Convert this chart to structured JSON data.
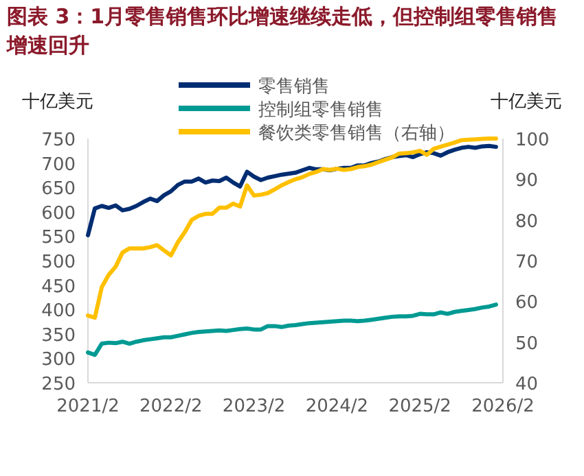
{
  "chart_data": {
    "type": "line",
    "title": "图表 3：1月零售销售环比增速继续走低，但控制组零售销售增速回升",
    "ylabel": "十亿美元",
    "y2label": "十亿美元",
    "x": [
      "2021-02",
      "2021-03",
      "2021-04",
      "2021-05",
      "2021-06",
      "2021-07",
      "2021-08",
      "2021-09",
      "2021-10",
      "2021-11",
      "2021-12",
      "2022-01",
      "2022-02",
      "2022-03",
      "2022-04",
      "2022-05",
      "2022-06",
      "2022-07",
      "2022-08",
      "2022-09",
      "2022-10",
      "2022-11",
      "2022-12",
      "2023-01",
      "2023-02",
      "2023-03",
      "2023-04",
      "2023-05",
      "2023-06",
      "2023-07",
      "2023-08",
      "2023-09",
      "2023-10",
      "2023-11",
      "2023-12",
      "2024-01",
      "2024-02",
      "2024-03",
      "2024-04",
      "2024-05",
      "2024-06",
      "2024-07",
      "2024-08",
      "2024-09",
      "2024-10",
      "2024-11",
      "2024-12",
      "2025-01",
      "2025-02",
      "2025-03",
      "2025-04",
      "2025-05",
      "2025-06",
      "2025-07",
      "2025-08",
      "2025-09",
      "2025-10",
      "2025-11",
      "2025-12",
      "2026-01"
    ],
    "series": [
      {
        "name": "零售销售",
        "color": "#002d72",
        "values": [
          552,
          607,
          612,
          608,
          613,
          603,
          606,
          612,
          620,
          627,
          622,
          634,
          642,
          655,
          662,
          662,
          668,
          660,
          664,
          663,
          670,
          660,
          652,
          682,
          672,
          665,
          670,
          673,
          676,
          678,
          680,
          685,
          690,
          687,
          687,
          685,
          688,
          690,
          690,
          695,
          695,
          700,
          703,
          708,
          712,
          714,
          716,
          712,
          718,
          722,
          720,
          715,
          722,
          727,
          731,
          733,
          731,
          734,
          735,
          733
        ]
      },
      {
        "name": "控制组零售销售",
        "color": "#009a93",
        "values": [
          312,
          307,
          330,
          332,
          331,
          334,
          330,
          334,
          337,
          339,
          341,
          343,
          343,
          346,
          349,
          352,
          354,
          355,
          356,
          357,
          356,
          358,
          360,
          361,
          359,
          359,
          366,
          366,
          364,
          367,
          368,
          370,
          372,
          373,
          374,
          375,
          376,
          377,
          377,
          376,
          377,
          379,
          381,
          383,
          385,
          386,
          386,
          387,
          391,
          390,
          390,
          394,
          391,
          395,
          397,
          399,
          401,
          404,
          406,
          410
        ]
      },
      {
        "name": "餐饮类零售销售（右轴）",
        "color": "#ffc000",
        "axis": "y2",
        "values": [
          56.5,
          56,
          63.5,
          66.5,
          68.5,
          72,
          73,
          73,
          73,
          73.3,
          73.8,
          72.5,
          71.3,
          74.5,
          77,
          80,
          81,
          81.5,
          81.5,
          83,
          83,
          84,
          83.3,
          88.5,
          86,
          86.2,
          86.6,
          87.5,
          88.5,
          89.3,
          90,
          90.5,
          91.3,
          91.8,
          92.5,
          92.3,
          92.6,
          92.3,
          92.5,
          93,
          93.2,
          93.6,
          94.2,
          94.8,
          95.4,
          96.3,
          96.4,
          96.6,
          97,
          96,
          97.5,
          98,
          98.5,
          99,
          99.6,
          99.7,
          99.8,
          99.9,
          100,
          100
        ]
      }
    ],
    "xlim": [
      "2021-02",
      "2026-02"
    ],
    "xticks": [
      {
        "value": "2021-02",
        "label": "2021/2"
      },
      {
        "value": "2022-02",
        "label": "2022/2"
      },
      {
        "value": "2023-02",
        "label": "2023/2"
      },
      {
        "value": "2024-02",
        "label": "2024/2"
      },
      {
        "value": "2025-02",
        "label": "2025/2"
      },
      {
        "value": "2026-02",
        "label": "2026/2"
      }
    ],
    "ylim": [
      250,
      750
    ],
    "yticks": [
      250,
      300,
      350,
      400,
      450,
      500,
      550,
      600,
      650,
      700,
      750
    ],
    "y2lim": [
      40,
      100
    ],
    "y2ticks": [
      40,
      50,
      60,
      70,
      80,
      90,
      100
    ],
    "legend": "top",
    "grid": false,
    "marker": "none",
    "line_style": "solid"
  }
}
